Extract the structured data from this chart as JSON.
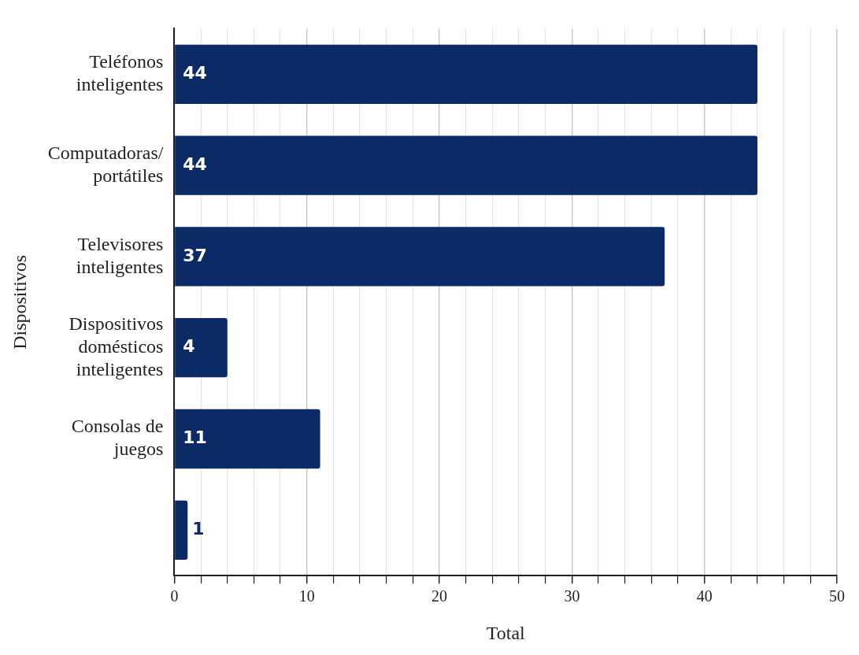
{
  "chart_data": {
    "type": "bar",
    "orientation": "horizontal",
    "xlabel": "Total",
    "ylabel": "Dispositivos",
    "categories": [
      "Teléfonos inteligentes",
      "Computadoras/ portátiles",
      "Televisores inteligentes",
      "Dispositivos domésticos inteligentes",
      "Consolas de juegos",
      null
    ],
    "values": [
      44,
      44,
      37,
      4,
      11,
      1
    ],
    "color": "#0b2a66",
    "data_labels": true,
    "grid": "x",
    "legend": false,
    "xlim": [
      0,
      50
    ],
    "xticks": [
      0,
      {
        "value": 2,
        "label": null
      },
      {
        "value": 4,
        "label": null
      },
      {
        "value": 6,
        "label": null
      },
      {
        "value": 8,
        "label": null
      },
      10,
      {
        "value": 12,
        "label": null
      },
      {
        "value": 14,
        "label": null
      },
      {
        "value": 16,
        "label": null
      },
      {
        "value": 18,
        "label": null
      },
      20,
      {
        "value": 22,
        "label": null
      },
      {
        "value": 24,
        "label": null
      },
      {
        "value": 26,
        "label": null
      },
      {
        "value": 28,
        "label": null
      },
      30,
      {
        "value": 32,
        "label": null
      },
      {
        "value": 34,
        "label": null
      },
      {
        "value": 36,
        "label": null
      },
      {
        "value": 38,
        "label": null
      },
      40,
      {
        "value": 42,
        "label": null
      },
      {
        "value": 44,
        "label": null
      },
      {
        "value": 46,
        "label": null
      },
      {
        "value": 48,
        "label": null
      },
      50
    ]
  }
}
